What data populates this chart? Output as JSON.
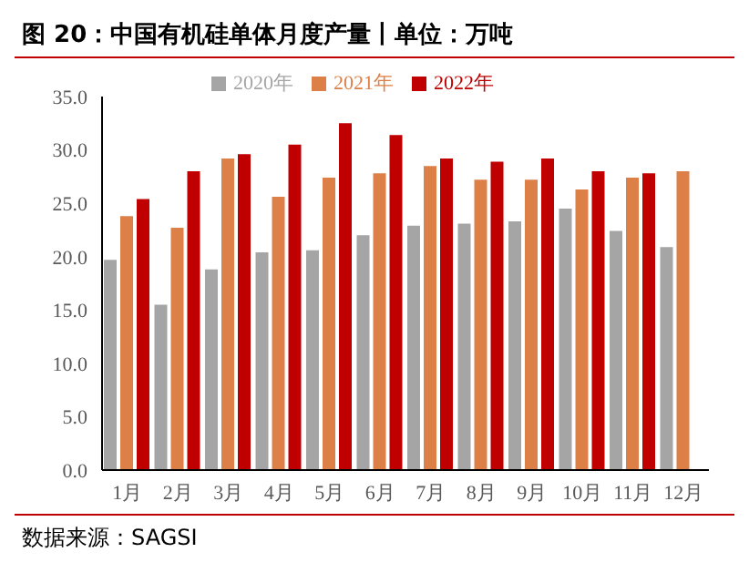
{
  "chart_data": {
    "type": "bar",
    "title": "图 20：中国有机硅单体月度产量丨单位：万吨",
    "categories": [
      "1月",
      "2月",
      "3月",
      "4月",
      "5月",
      "6月",
      "7月",
      "8月",
      "9月",
      "10月",
      "11月",
      "12月"
    ],
    "series": [
      {
        "name": "2020年",
        "color": "#a5a5a5",
        "values": [
          19.7,
          15.5,
          18.8,
          20.4,
          20.6,
          22.0,
          22.9,
          23.1,
          23.3,
          24.5,
          22.4,
          20.9
        ]
      },
      {
        "name": "2021年",
        "color": "#dd8047",
        "values": [
          23.8,
          22.7,
          29.2,
          25.6,
          27.4,
          27.8,
          28.5,
          27.2,
          27.2,
          26.3,
          27.4,
          28.0
        ]
      },
      {
        "name": "2022年",
        "color": "#c00000",
        "values": [
          25.4,
          28.0,
          29.6,
          30.5,
          32.5,
          31.4,
          29.2,
          28.9,
          29.2,
          28.0,
          27.8,
          null
        ]
      }
    ],
    "ylim": [
      0,
      35
    ],
    "yticks": [
      {
        "value": 0,
        "label": "0.0"
      },
      {
        "value": 5,
        "label": "5.0"
      },
      {
        "value": 10,
        "label": "10.0"
      },
      {
        "value": 15,
        "label": "15.0"
      },
      {
        "value": 20,
        "label": "20.0"
      },
      {
        "value": 25,
        "label": "25.0"
      },
      {
        "value": 30,
        "label": "30.0"
      },
      {
        "value": 35,
        "label": "35.0"
      }
    ],
    "grid": false,
    "legend": "top",
    "annotations": [
      "数据来源：SAGSI"
    ]
  }
}
